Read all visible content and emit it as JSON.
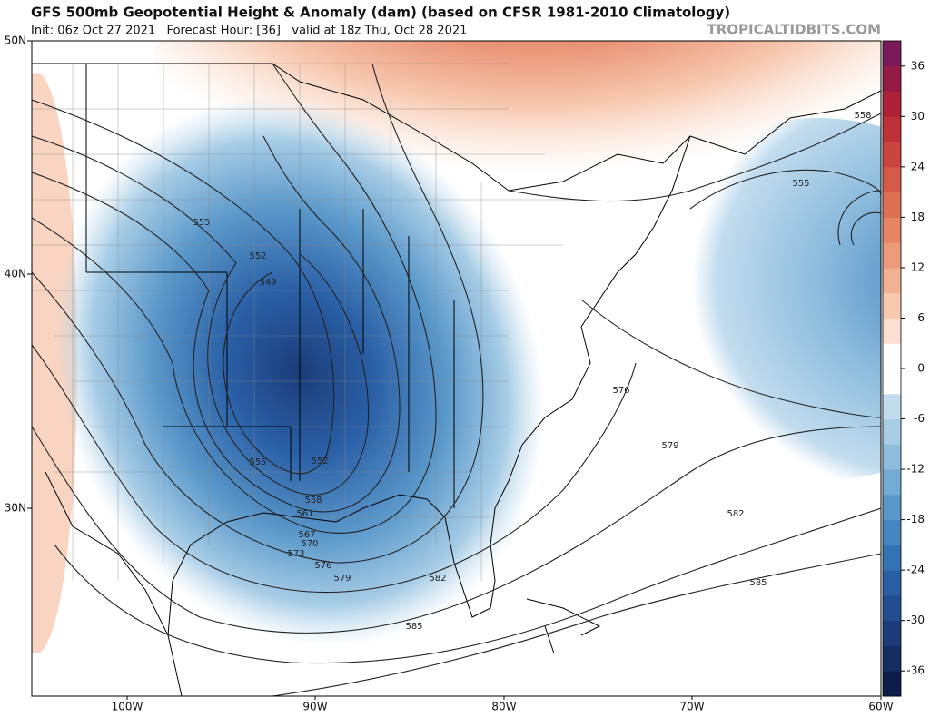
{
  "header": {
    "title": "GFS 500mb Geopotential Height & Anomaly (dam) (based on CFSR 1981-2010 Climatology)",
    "subtitle": "Init: 06z Oct 27 2021   Forecast Hour: [36]   valid at 18z Thu, Oct 28 2021",
    "watermark": "TROPICALTIDBITS.COM"
  },
  "map": {
    "latitude_labels": [
      "50N",
      "40N",
      "30N"
    ],
    "longitude_labels": [
      "100W",
      "90W",
      "80W",
      "70W",
      "60W"
    ],
    "contour_labels": [
      555,
      552,
      549,
      555,
      552,
      558,
      561,
      567,
      570,
      573,
      576,
      579,
      582,
      585,
      558,
      555,
      576,
      579,
      582,
      585
    ]
  },
  "colorbar": {
    "range": [
      -39,
      39
    ],
    "ticks": [
      36,
      30,
      24,
      18,
      12,
      6,
      0,
      -6,
      -12,
      -18,
      -24,
      -30,
      -36
    ],
    "colors": [
      "#0b1e47",
      "#142c5e",
      "#1b3c78",
      "#224d90",
      "#2a5fa6",
      "#3572b4",
      "#4585c0",
      "#5a98ca",
      "#73abd4",
      "#8dbcdd",
      "#a8cde6",
      "#c2dcee",
      "#ffffff",
      "#ffffff",
      "#fbe0d2",
      "#f7c9b1",
      "#f2b193",
      "#ec9b7a",
      "#e58566",
      "#dd6f55",
      "#d55a49",
      "#cb4540",
      "#bf3139",
      "#ad2237",
      "#951b45",
      "#7a1a5b"
    ]
  }
}
